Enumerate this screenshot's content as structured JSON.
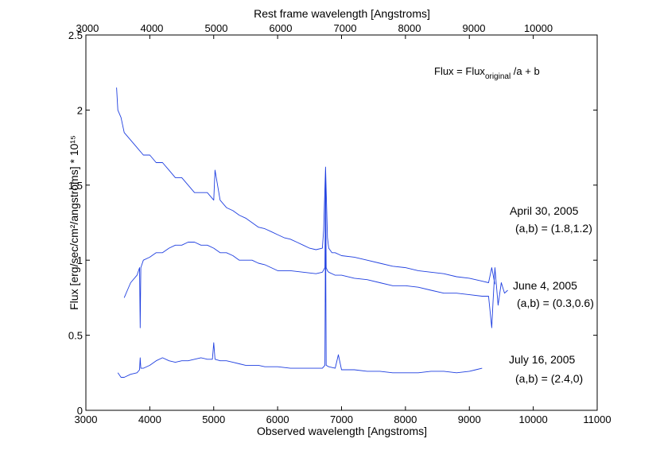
{
  "chart_data": {
    "type": "line",
    "title": "",
    "xlabel": "Observed wavelength [Angstroms]",
    "ylabel": "Flux [erg/sec/cm²/angstroms] * 10¹⁵",
    "x2label": "Rest frame wavelength [Angstroms]",
    "xlim": [
      3000,
      11000
    ],
    "ylim": [
      0,
      2.5
    ],
    "x2lim": [
      2976,
      10913
    ],
    "xticks": [
      "3000",
      "4000",
      "5000",
      "6000",
      "7000",
      "8000",
      "9000",
      "10000",
      "11000"
    ],
    "yticks": [
      "0",
      "0.5",
      "1",
      "1.5",
      "2",
      "2.5"
    ],
    "x2ticks": [
      "3000",
      "4000",
      "5000",
      "6000",
      "7000",
      "8000",
      "9000",
      "10000"
    ],
    "grid": false,
    "line_color": "#1f3fe0",
    "formula": {
      "main": "Flux = Flux",
      "sub": "original",
      "rest": " /a + b"
    },
    "annotations": [
      {
        "date": "April 30, 2005",
        "params": "(a,b) = (1.8,1.2)"
      },
      {
        "date": "June 4, 2005",
        "params": "(a,b) = (0.3,0.6)"
      },
      {
        "date": "July 16, 2005",
        "params": "(a,b) = (2.4,0)"
      }
    ],
    "series": [
      {
        "x": [
          3480,
          3500,
          3550,
          3600,
          3700,
          3800,
          3900,
          4000,
          4100,
          4200,
          4300,
          4400,
          4500,
          4600,
          4700,
          4800,
          4900,
          5000,
          5020,
          5100,
          5200,
          5300,
          5400,
          5500,
          5600,
          5700,
          5800,
          5900,
          6000,
          6100,
          6200,
          6300,
          6400,
          6500,
          6600,
          6700,
          6720,
          6750,
          6780,
          6800,
          6850,
          6900,
          7000,
          7200,
          7400,
          7600,
          7800,
          8000,
          8200,
          8400,
          8600,
          8800,
          9000,
          9200,
          9300,
          9350,
          9400
        ],
        "y": [
          2.15,
          2.0,
          1.95,
          1.85,
          1.8,
          1.75,
          1.7,
          1.7,
          1.65,
          1.65,
          1.6,
          1.55,
          1.55,
          1.5,
          1.45,
          1.45,
          1.45,
          1.4,
          1.6,
          1.4,
          1.35,
          1.33,
          1.3,
          1.28,
          1.25,
          1.22,
          1.21,
          1.19,
          1.17,
          1.15,
          1.14,
          1.12,
          1.1,
          1.08,
          1.07,
          1.08,
          1.2,
          1.62,
          1.15,
          1.08,
          1.05,
          1.05,
          1.03,
          1.02,
          1.0,
          0.98,
          0.96,
          0.95,
          0.93,
          0.92,
          0.91,
          0.89,
          0.88,
          0.86,
          0.85,
          0.95,
          0.84
        ]
      },
      {
        "x": [
          3600,
          3650,
          3700,
          3800,
          3840,
          3850,
          3860,
          3900,
          4000,
          4100,
          4200,
          4300,
          4400,
          4500,
          4600,
          4700,
          4800,
          4900,
          5000,
          5100,
          5200,
          5300,
          5400,
          5500,
          5600,
          5700,
          5800,
          5900,
          6000,
          6200,
          6400,
          6600,
          6700,
          6740,
          6750,
          6760,
          6780,
          6800,
          6900,
          7000,
          7200,
          7400,
          7600,
          7800,
          8000,
          8200,
          8400,
          8600,
          8800,
          9000,
          9200,
          9300,
          9350,
          9370,
          9400,
          9450,
          9500,
          9550,
          9600
        ],
        "y": [
          0.75,
          0.8,
          0.85,
          0.9,
          0.95,
          0.55,
          0.95,
          1.0,
          1.02,
          1.05,
          1.05,
          1.08,
          1.1,
          1.1,
          1.12,
          1.12,
          1.1,
          1.1,
          1.08,
          1.05,
          1.05,
          1.03,
          1.0,
          1.0,
          1.0,
          0.98,
          0.97,
          0.95,
          0.93,
          0.93,
          0.92,
          0.91,
          0.92,
          0.95,
          1.55,
          0.95,
          0.93,
          0.92,
          0.9,
          0.9,
          0.88,
          0.87,
          0.85,
          0.83,
          0.83,
          0.82,
          0.8,
          0.78,
          0.78,
          0.77,
          0.76,
          0.76,
          0.55,
          0.72,
          0.95,
          0.7,
          0.85,
          0.78,
          0.8
        ]
      },
      {
        "x": [
          3500,
          3550,
          3600,
          3700,
          3800,
          3840,
          3850,
          3860,
          3900,
          4000,
          4100,
          4200,
          4300,
          4400,
          4500,
          4600,
          4700,
          4800,
          4900,
          4980,
          5000,
          5020,
          5100,
          5200,
          5300,
          5400,
          5500,
          5600,
          5700,
          5800,
          5900,
          6000,
          6200,
          6400,
          6600,
          6700,
          6740,
          6750,
          6760,
          6800,
          6900,
          6950,
          7000,
          7200,
          7400,
          7600,
          7800,
          8000,
          8200,
          8400,
          8600,
          8800,
          9000,
          9100,
          9200
        ],
        "y": [
          0.25,
          0.22,
          0.22,
          0.24,
          0.25,
          0.27,
          0.35,
          0.28,
          0.28,
          0.3,
          0.33,
          0.35,
          0.33,
          0.32,
          0.33,
          0.33,
          0.34,
          0.35,
          0.34,
          0.34,
          0.45,
          0.34,
          0.33,
          0.33,
          0.32,
          0.31,
          0.3,
          0.3,
          0.3,
          0.29,
          0.29,
          0.29,
          0.28,
          0.28,
          0.28,
          0.28,
          0.3,
          1.28,
          0.3,
          0.29,
          0.28,
          0.37,
          0.27,
          0.27,
          0.26,
          0.26,
          0.25,
          0.25,
          0.25,
          0.26,
          0.26,
          0.25,
          0.26,
          0.27,
          0.28
        ]
      }
    ]
  }
}
